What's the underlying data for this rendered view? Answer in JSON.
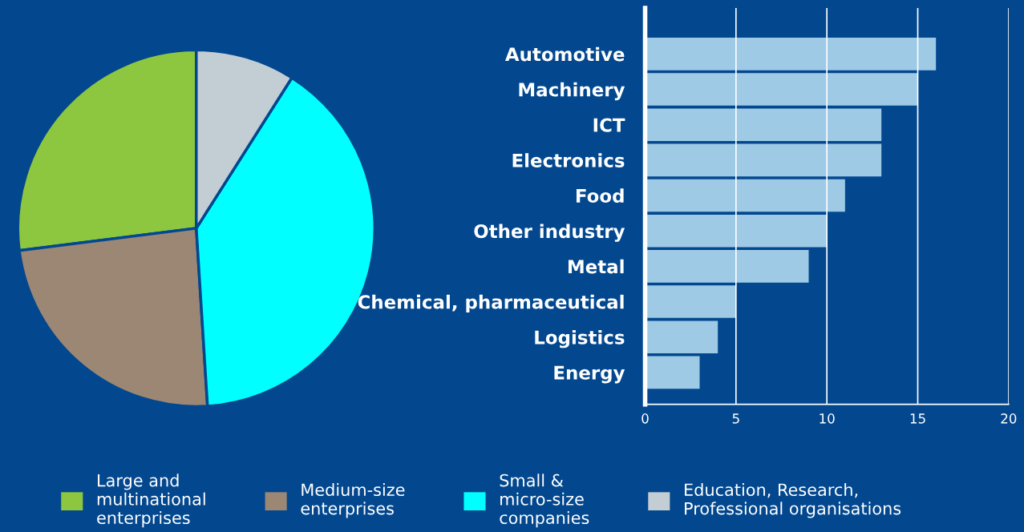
{
  "chart_data": [
    {
      "type": "pie",
      "categories": [
        "Large and\nmultinational\nenterprises",
        "Medium-size\nenterprises",
        "Small &\nmicro-size\ncompanies",
        "Education, Research,\nProfessional organisations"
      ],
      "values": [
        27,
        24,
        40,
        9
      ],
      "colors": [
        "#8dc63f",
        "#9b8774",
        "#00ffff",
        "#c3cdd4"
      ],
      "legend": "bottom"
    },
    {
      "type": "bar",
      "orientation": "horizontal",
      "categories": [
        "Automotive",
        "Machinery",
        "ICT",
        "Electronics",
        "Food",
        "Other industry",
        "Metal",
        "Chemical, pharmaceutical",
        "Logistics",
        "Energy"
      ],
      "values": [
        16,
        15,
        13,
        13,
        11,
        10,
        9,
        5,
        4,
        3
      ],
      "color": "#9ecae6",
      "xlim": [
        0,
        20
      ],
      "xticks": [
        0,
        5,
        10,
        15,
        20
      ],
      "grid": "x"
    }
  ]
}
